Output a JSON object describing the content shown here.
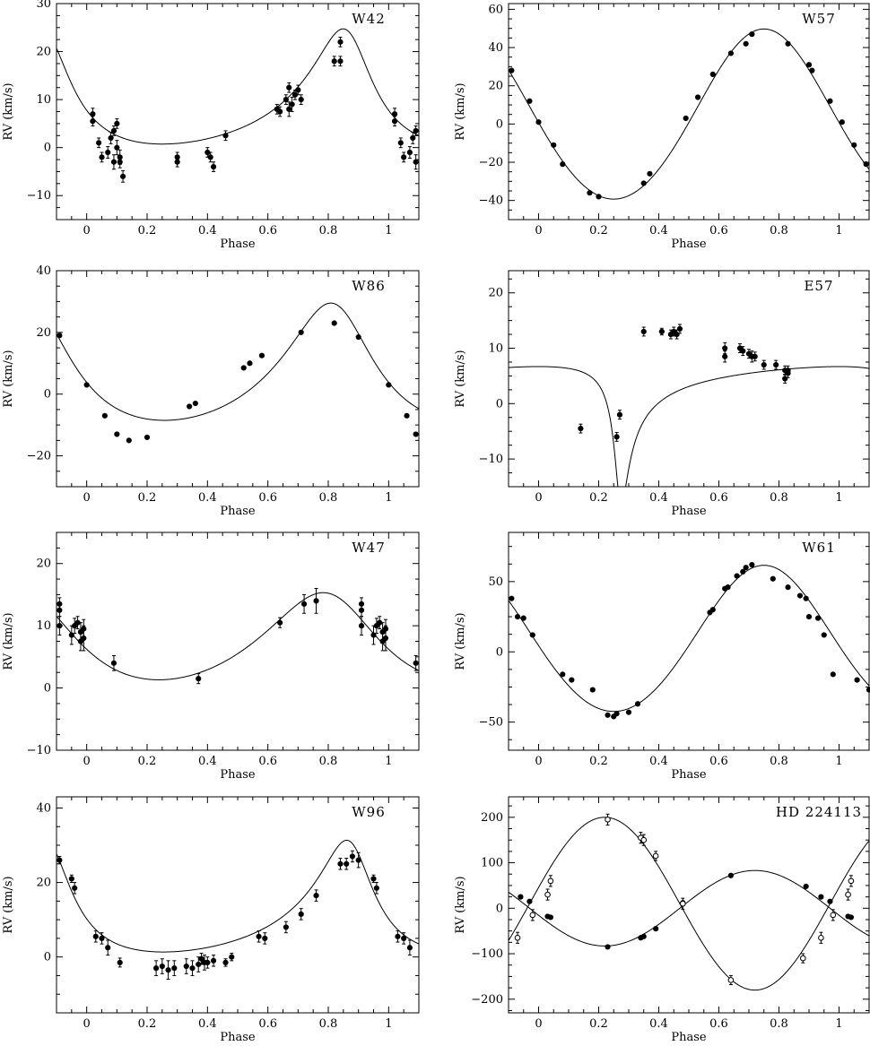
{
  "chart_data": [
    {
      "type": "scatter",
      "title": "W42",
      "xlabel": "Phase",
      "ylabel": "RV (km/s)",
      "xlim": [
        -0.1,
        1.1
      ],
      "ylim": [
        -15,
        30
      ],
      "xticks": [
        0,
        0.2,
        0.4,
        0.6,
        0.8,
        1
      ],
      "xtick_labels": [
        "0",
        "0.2",
        "0.4",
        "0.6",
        "0.8",
        "1"
      ],
      "yticks": [
        -10,
        0,
        10,
        20,
        30
      ],
      "ytick_labels": [
        "−10",
        "0",
        "10",
        "20",
        "30"
      ],
      "series": [
        {
          "marker": "filled-circle",
          "x": [
            0.02,
            0.02,
            0.04,
            0.05,
            0.07,
            0.08,
            0.09,
            0.09,
            0.1,
            0.1,
            0.11,
            0.11,
            0.12,
            0.3,
            0.3,
            0.4,
            0.41,
            0.42,
            0.46,
            0.63,
            0.64,
            0.66,
            0.67,
            0.67,
            0.68,
            0.69,
            0.7,
            0.71,
            0.82,
            0.84,
            0.84,
            1.02,
            1.02,
            1.04,
            1.05,
            1.07,
            1.08,
            1.09,
            1.09
          ],
          "y": [
            7,
            5.5,
            1,
            -2,
            -1,
            2,
            3.5,
            -3,
            5,
            0,
            -2,
            -3,
            -6,
            -2,
            -3,
            -1,
            -2,
            -4,
            2.5,
            8,
            7.5,
            10,
            12.5,
            8,
            9,
            11,
            12,
            10,
            18,
            22,
            18,
            7,
            5.5,
            1,
            -2,
            -1,
            2,
            3.5,
            -3
          ],
          "yerr": [
            1.2,
            1,
            1,
            1,
            1.2,
            1.2,
            1,
            1.5,
            1,
            1.5,
            1.5,
            1.2,
            1.2,
            1,
            1,
            1,
            1,
            1,
            1,
            1,
            1,
            1,
            1,
            1.5,
            1.5,
            1,
            1,
            1,
            1,
            1,
            1,
            1.2,
            1,
            1,
            1,
            1.2,
            1.2,
            1,
            1.5
          ]
        }
      ],
      "curve": {
        "k": 12,
        "gamma": 8,
        "e": 0.42,
        "omega_deg": 20,
        "tp": 0.87
      }
    },
    {
      "type": "scatter",
      "title": "W57",
      "xlabel": "Phase",
      "ylabel": "RV (km/s)",
      "xlim": [
        -0.1,
        1.1
      ],
      "ylim": [
        -50,
        63
      ],
      "xticks": [
        0,
        0.2,
        0.4,
        0.6,
        0.8,
        1
      ],
      "xtick_labels": [
        "0",
        "0.2",
        "0.4",
        "0.6",
        "0.8",
        "1"
      ],
      "yticks": [
        -40,
        -20,
        0,
        20,
        40,
        60
      ],
      "ytick_labels": [
        "−40",
        "−20",
        "0",
        "20",
        "40",
        "60"
      ],
      "series": [
        {
          "marker": "filled-circle",
          "x": [
            -0.09,
            -0.03,
            0.0,
            0.05,
            0.08,
            0.17,
            0.2,
            0.35,
            0.37,
            0.49,
            0.53,
            0.58,
            0.64,
            0.69,
            0.71,
            0.83,
            0.9,
            0.91,
            0.97,
            1.01,
            1.05,
            1.09
          ],
          "y": [
            28,
            12,
            1,
            -11,
            -21,
            -36,
            -38,
            -31,
            -26,
            3,
            14,
            26,
            37,
            42,
            47,
            42,
            31,
            28,
            12,
            1,
            -11,
            -21
          ],
          "yerr": []
        }
      ],
      "curve": {
        "k": 44.5,
        "gamma": 3,
        "e": 0.05,
        "omega_deg": 0,
        "tp": 0.75
      }
    },
    {
      "type": "scatter",
      "title": "W86",
      "xlabel": "Phase",
      "ylabel": "RV (km/s)",
      "xlim": [
        -0.1,
        1.1
      ],
      "ylim": [
        -30,
        40
      ],
      "xticks": [
        0,
        0.2,
        0.4,
        0.6,
        0.8,
        1
      ],
      "xtick_labels": [
        "0",
        "0.2",
        "0.4",
        "0.6",
        "0.8",
        "1"
      ],
      "yticks": [
        -20,
        0,
        20,
        40
      ],
      "ytick_labels": [
        "−20",
        "0",
        "20",
        "40"
      ],
      "series": [
        {
          "marker": "filled-circle",
          "x": [
            -0.09,
            0.0,
            0.06,
            0.1,
            0.14,
            0.2,
            0.34,
            0.36,
            0.52,
            0.54,
            0.58,
            0.71,
            0.82,
            0.9,
            1.0,
            1.06,
            1.09
          ],
          "y": [
            19,
            3,
            -7,
            -13,
            -15,
            -14,
            -4,
            -3,
            8.5,
            10,
            12.5,
            20,
            23,
            18.5,
            3,
            -7,
            -13
          ],
          "yerr": []
        }
      ],
      "curve": {
        "k": 19,
        "gamma": 5,
        "e": 0.3,
        "omega_deg": 15,
        "tp": 0.83
      }
    },
    {
      "type": "scatter",
      "title": "E57",
      "xlabel": "Phase",
      "ylabel": "RV (km/s)",
      "xlim": [
        -0.1,
        1.1
      ],
      "ylim": [
        -15,
        24
      ],
      "xticks": [
        0,
        0.2,
        0.4,
        0.6,
        0.8,
        1
      ],
      "xtick_labels": [
        "0",
        "0.2",
        "0.4",
        "0.6",
        "0.8",
        "1"
      ],
      "yticks": [
        -10,
        0,
        10,
        20
      ],
      "ytick_labels": [
        "−10",
        "0",
        "10",
        "20"
      ],
      "series": [
        {
          "marker": "filled-circle",
          "x": [
            0.14,
            0.26,
            0.27,
            0.35,
            0.41,
            0.44,
            0.45,
            0.46,
            0.47,
            0.62,
            0.62,
            0.67,
            0.68,
            0.7,
            0.71,
            0.72,
            0.75,
            0.79,
            0.82,
            0.82,
            0.83,
            0.83
          ],
          "y": [
            -4.5,
            -6,
            -2,
            13,
            13,
            12.5,
            13,
            12.5,
            13.5,
            10,
            8.5,
            10,
            9.5,
            9,
            8.5,
            8.5,
            7,
            7,
            6,
            4.5,
            5.5,
            6
          ],
          "yerr": [
            0.8,
            0.8,
            0.8,
            0.8,
            0.6,
            0.8,
            0.8,
            0.8,
            0.8,
            1,
            1,
            0.8,
            0.8,
            0.8,
            1,
            0.8,
            0.8,
            0.8,
            0.8,
            0.8,
            0.8,
            0.8
          ]
        }
      ],
      "curve": {
        "k": 12.5,
        "gamma": 3,
        "e": 0.75,
        "omega_deg": 160,
        "tp": 0.27
      }
    },
    {
      "type": "scatter",
      "title": "W47",
      "xlabel": "Phase",
      "ylabel": "RV (km/s)",
      "xlim": [
        -0.1,
        1.1
      ],
      "ylim": [
        -10,
        25
      ],
      "xticks": [
        0,
        0.2,
        0.4,
        0.6,
        0.8,
        1
      ],
      "xtick_labels": [
        "0",
        "0.2",
        "0.4",
        "0.6",
        "0.8",
        "1"
      ],
      "yticks": [
        -10,
        0,
        10,
        20
      ],
      "ytick_labels": [
        "−10",
        "0",
        "10",
        "20"
      ],
      "series": [
        {
          "marker": "filled-circle",
          "x": [
            -0.09,
            -0.09,
            -0.09,
            -0.05,
            -0.04,
            -0.03,
            -0.02,
            -0.02,
            -0.01,
            -0.01,
            0.09,
            0.37,
            0.64,
            0.72,
            0.76,
            0.91,
            0.91,
            0.91,
            0.95,
            0.96,
            0.97,
            0.98,
            0.98,
            0.99,
            0.99,
            1.09
          ],
          "y": [
            13.5,
            12.5,
            10,
            8.5,
            10,
            10.5,
            9,
            7.5,
            8,
            9.5,
            4,
            1.5,
            10.5,
            13.5,
            14,
            13.5,
            12.5,
            10,
            8.5,
            10,
            10.5,
            9,
            7.5,
            8,
            9.5,
            4
          ],
          "yerr": [
            1,
            1,
            1.5,
            1.5,
            1.2,
            1,
            1.5,
            1.5,
            2,
            1.5,
            1.2,
            0.8,
            0.8,
            1.5,
            2,
            1,
            1,
            1.5,
            1.5,
            1.2,
            1,
            1.5,
            1.5,
            2,
            1.5,
            1.2
          ]
        }
      ],
      "curve": {
        "k": 7,
        "gamma": 7,
        "e": 0.2,
        "omega_deg": 20,
        "tp": 0.82
      }
    },
    {
      "type": "scatter",
      "title": "W61",
      "xlabel": "Phase",
      "ylabel": "RV (km/s)",
      "xlim": [
        -0.1,
        1.1
      ],
      "ylim": [
        -70,
        85
      ],
      "xticks": [
        0,
        0.2,
        0.4,
        0.6,
        0.8,
        1
      ],
      "xtick_labels": [
        "0",
        "0.2",
        "0.4",
        "0.6",
        "0.8",
        "1"
      ],
      "yticks": [
        -50,
        0,
        50
      ],
      "ytick_labels": [
        "−50",
        "0",
        "50"
      ],
      "series": [
        {
          "marker": "filled-circle",
          "x": [
            -0.09,
            -0.07,
            -0.05,
            -0.02,
            0.08,
            0.11,
            0.18,
            0.23,
            0.25,
            0.26,
            0.3,
            0.33,
            0.57,
            0.58,
            0.62,
            0.63,
            0.66,
            0.68,
            0.69,
            0.71,
            0.78,
            0.83,
            0.87,
            0.89,
            0.9,
            0.93,
            0.95,
            0.98,
            1.06,
            1.1
          ],
          "y": [
            38,
            25,
            24,
            12,
            -16,
            -20,
            -27,
            -45,
            -46,
            -44,
            -43,
            -37,
            28,
            30,
            45,
            46,
            54,
            57,
            60,
            62,
            52,
            46,
            40,
            38,
            25,
            24,
            12,
            -16,
            -20,
            -27
          ],
          "yerr": []
        }
      ],
      "curve": {
        "k": 52,
        "gamma": 7,
        "e": 0.05,
        "omega_deg": 0,
        "tp": 0.75
      }
    },
    {
      "type": "scatter",
      "title": "W96",
      "xlabel": "Phase",
      "ylabel": "RV (km/s)",
      "xlim": [
        -0.1,
        1.1
      ],
      "ylim": [
        -15,
        43
      ],
      "xticks": [
        0,
        0.2,
        0.4,
        0.6,
        0.8,
        1
      ],
      "xtick_labels": [
        "0",
        "0.2",
        "0.4",
        "0.6",
        "0.8",
        "1"
      ],
      "yticks": [
        0,
        20,
        40
      ],
      "ytick_labels": [
        "0",
        "20",
        "40"
      ],
      "series": [
        {
          "marker": "filled-circle",
          "x": [
            -0.09,
            -0.05,
            -0.04,
            0.03,
            0.05,
            0.07,
            0.11,
            0.23,
            0.25,
            0.27,
            0.29,
            0.33,
            0.35,
            0.37,
            0.38,
            0.39,
            0.4,
            0.42,
            0.46,
            0.48,
            0.57,
            0.59,
            0.66,
            0.71,
            0.76,
            0.84,
            0.86,
            0.88,
            0.9,
            0.95,
            0.96,
            1.03,
            1.05,
            1.07
          ],
          "y": [
            26,
            21,
            18.5,
            5.5,
            5,
            2.5,
            -1.5,
            -3,
            -2.5,
            -3.5,
            -3,
            -2.5,
            -3,
            -2,
            -0.5,
            -1.5,
            -1.5,
            -1,
            -1.5,
            0,
            5.5,
            5,
            8,
            11.5,
            16.5,
            25,
            25,
            27,
            26,
            21,
            18.5,
            5.5,
            5,
            2.5
          ],
          "yerr": [
            1,
            1,
            1.5,
            1.5,
            1.5,
            2,
            1.2,
            2,
            2,
            2.5,
            2,
            2,
            2,
            2,
            1.5,
            2,
            1.5,
            1.5,
            1,
            1,
            1.5,
            1.5,
            1.5,
            1.5,
            1.5,
            1.5,
            1.5,
            1.5,
            2,
            1,
            1.5,
            1.5,
            1.5,
            2
          ]
        }
      ],
      "curve": {
        "k": 15,
        "gamma": 10,
        "e": 0.45,
        "omega_deg": 20,
        "tp": 0.88
      }
    },
    {
      "type": "scatter",
      "title": "HD 224113",
      "xlabel": "Phase",
      "ylabel": "RV (km/s)",
      "xlim": [
        -0.1,
        1.1
      ],
      "ylim": [
        -230,
        245
      ],
      "xticks": [
        0,
        0.2,
        0.4,
        0.6,
        0.8,
        1
      ],
      "xtick_labels": [
        "0",
        "0.2",
        "0.4",
        "0.6",
        "0.8",
        "1"
      ],
      "yticks": [
        -200,
        -100,
        0,
        100,
        200
      ],
      "ytick_labels": [
        "−200",
        "−100",
        "0",
        "100",
        "200"
      ],
      "series": [
        {
          "marker": "filled-circle",
          "x": [
            -0.06,
            -0.03,
            0.03,
            0.04,
            0.23,
            0.34,
            0.35,
            0.39,
            0.48,
            0.64,
            0.89,
            0.94,
            0.97,
            1.03,
            1.04
          ],
          "y": [
            25,
            15,
            -18,
            -20,
            -85,
            -65,
            -62,
            -45,
            12,
            72,
            48,
            25,
            15,
            -18,
            -20
          ],
          "yerr": []
        },
        {
          "marker": "open-circle",
          "x": [
            -0.07,
            -0.02,
            0.03,
            0.04,
            0.23,
            0.34,
            0.35,
            0.39,
            0.48,
            0.64,
            0.88,
            0.94,
            0.98,
            1.03,
            1.04
          ],
          "y": [
            -65,
            -15,
            30,
            60,
            195,
            155,
            150,
            115,
            10,
            -158,
            -110,
            -65,
            -15,
            30,
            60
          ],
          "yerr": [
            12,
            12,
            12,
            12,
            12,
            12,
            12,
            10,
            12,
            10,
            10,
            12,
            12,
            12,
            12
          ]
        }
      ],
      "curves": [
        {
          "k": 83,
          "gamma": 0,
          "e": 0,
          "omega_deg": 0,
          "tp": 0.72
        },
        {
          "k": -190,
          "gamma": 10,
          "e": 0,
          "omega_deg": 0,
          "tp": 0.72
        }
      ]
    }
  ]
}
